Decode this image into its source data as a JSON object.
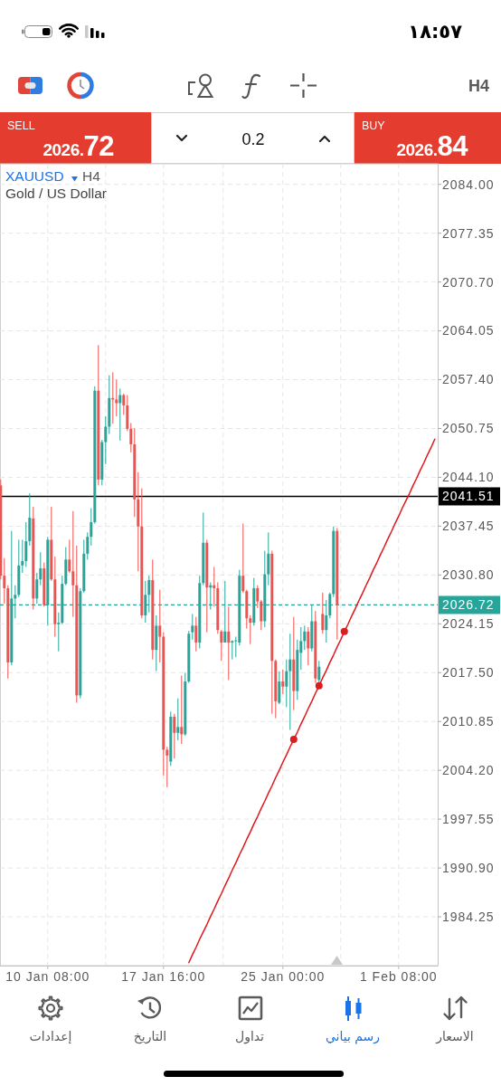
{
  "chart_data": {
    "type": "candlestick",
    "title": "XAUUSD",
    "subtitle": "Gold / US Dollar",
    "annotations": [
      "١٨:٥٧",
      "H4",
      "SELL",
      "2026.72",
      "0.2",
      "BUY",
      "2026.84",
      "H4",
      "إعدادات",
      "التاريخ",
      "تداول",
      "رسم بياني",
      "الاسعار"
    ],
    "categories": [
      null,
      null,
      null,
      null,
      null,
      null,
      null,
      null,
      null,
      null,
      null,
      null,
      null,
      "10 Jan 08:00",
      null,
      null,
      null,
      null,
      null,
      null,
      null,
      null,
      null,
      null,
      null,
      null,
      null,
      null,
      null,
      null,
      null,
      null,
      null,
      null,
      null,
      null,
      null,
      null,
      null,
      null,
      null,
      null,
      null,
      null,
      null,
      "17 Jan 16:00",
      null,
      null,
      null,
      null,
      null,
      null,
      null,
      null,
      null,
      null,
      null,
      null,
      null,
      null,
      null,
      null,
      null,
      null,
      null,
      null,
      null,
      null,
      null,
      null,
      null,
      null,
      null,
      null,
      null,
      null,
      null,
      null,
      "25 Jan 00:00",
      null,
      null,
      null,
      null,
      null,
      null,
      null,
      null,
      null,
      null,
      null,
      null,
      null,
      null,
      null,
      null,
      null,
      null,
      null,
      null,
      null,
      null,
      null,
      null,
      null,
      null,
      null,
      null,
      null,
      null,
      null,
      "1 Feb 08:00",
      null,
      null,
      null,
      null,
      null,
      null,
      null,
      null,
      null,
      null
    ],
    "ohlc": [
      [
        2043.0,
        2043.8,
        2030.2,
        2030.7
      ],
      [
        2030.7,
        2033.1,
        2026.9,
        2029.0
      ],
      [
        2029.0,
        2029.4,
        2016.7,
        2018.9
      ],
      [
        2018.9,
        2036.8,
        2018.5,
        2027.6
      ],
      [
        2027.6,
        2029.4,
        2024.9,
        2028.1
      ],
      [
        2028.1,
        2035.6,
        2027.8,
        2032.1
      ],
      [
        2032.1,
        2035.6,
        2031.1,
        2032.7
      ],
      [
        2032.7,
        2038.0,
        2031.9,
        2035.4
      ],
      [
        2035.4,
        2041.9,
        2034.8,
        2038.6
      ],
      [
        2038.5,
        2040.1,
        2026.1,
        2027.6
      ],
      [
        2027.6,
        2031.1,
        2026.9,
        2030.2
      ],
      [
        2030.2,
        2033.9,
        2029.4,
        2031.7
      ],
      [
        2031.7,
        2032.5,
        2026.5,
        2026.7
      ],
      [
        2026.7,
        2036.0,
        2023.9,
        2035.6
      ],
      [
        2035.6,
        2040.1,
        2030.0,
        2030.2
      ],
      [
        2030.2,
        2033.3,
        2022.4,
        2024.1
      ],
      [
        2024.1,
        2025.7,
        2020.4,
        2024.3
      ],
      [
        2024.3,
        2030.7,
        2024.1,
        2029.6
      ],
      [
        2029.6,
        2034.6,
        2029.4,
        2032.9
      ],
      [
        2032.9,
        2035.6,
        2031.1,
        2031.3
      ],
      [
        2031.3,
        2039.5,
        2025.1,
        2029.4
      ],
      [
        2029.4,
        2034.8,
        2013.4,
        2014.4
      ],
      [
        2014.4,
        2029.0,
        2014.0,
        2028.6
      ],
      [
        2028.6,
        2035.6,
        2028.4,
        2033.7
      ],
      [
        2033.7,
        2036.6,
        2032.9,
        2036.0
      ],
      [
        2036.0,
        2039.9,
        2034.8,
        2038.0
      ],
      [
        2038.0,
        2056.5,
        2037.8,
        2055.9
      ],
      [
        2055.9,
        2062.1,
        2043.0,
        2043.8
      ],
      [
        2043.8,
        2049.2,
        2043.0,
        2048.9
      ],
      [
        2048.9,
        2052.4,
        2045.9,
        2051.0
      ],
      [
        2051.0,
        2058.0,
        2050.0,
        2054.9
      ],
      [
        2054.9,
        2058.4,
        2051.4,
        2054.7
      ],
      [
        2054.7,
        2057.4,
        2052.4,
        2054.2
      ],
      [
        2054.2,
        2056.2,
        2049.1,
        2055.3
      ],
      [
        2055.3,
        2055.5,
        2052.6,
        2053.9
      ],
      [
        2053.9,
        2055.3,
        2050.4,
        2050.7
      ],
      [
        2050.7,
        2051.5,
        2047.5,
        2048.6
      ],
      [
        2048.6,
        2050.8,
        2038.7,
        2041.1
      ],
      [
        2041.1,
        2044.8,
        2031.3,
        2037.4
      ],
      [
        2037.4,
        2042.6,
        2024.9,
        2025.3
      ],
      [
        2025.3,
        2030.0,
        2024.3,
        2028.1
      ],
      [
        2028.1,
        2030.7,
        2025.7,
        2030.1
      ],
      [
        2030.1,
        2032.9,
        2019.3,
        2020.6
      ],
      [
        2020.6,
        2025.3,
        2017.7,
        2023.9
      ],
      [
        2023.9,
        2028.8,
        2018.9,
        2022.4
      ],
      [
        2022.4,
        2023.0,
        2003.5,
        2007.0
      ],
      [
        2007.0,
        2007.4,
        2001.9,
        2006.2
      ],
      [
        2005.4,
        2012.2,
        2004.8,
        2011.5
      ],
      [
        2011.5,
        2011.9,
        2005.8,
        2009.3
      ],
      [
        2009.3,
        2014.0,
        2008.3,
        2010.1
      ],
      [
        2010.1,
        2017.1,
        2007.8,
        2009.1
      ],
      [
        2009.1,
        2017.5,
        2008.9,
        2016.3
      ],
      [
        2016.3,
        2023.2,
        2016.1,
        2022.8
      ],
      [
        2023.0,
        2025.5,
        2022.0,
        2023.9
      ],
      [
        2023.9,
        2025.1,
        2020.4,
        2021.6
      ],
      [
        2021.6,
        2030.7,
        2020.8,
        2029.7
      ],
      [
        2029.7,
        2039.3,
        2029.4,
        2035.2
      ],
      [
        2035.2,
        2035.6,
        2023.0,
        2029.1
      ],
      [
        2029.1,
        2029.8,
        2026.1,
        2029.4
      ],
      [
        2029.4,
        2031.9,
        2026.5,
        2029.0
      ],
      [
        2029.0,
        2029.8,
        2022.8,
        2023.3
      ],
      [
        2023.1,
        2023.3,
        2019.1,
        2021.6
      ],
      [
        2021.6,
        2030.0,
        2021.6,
        2023.1
      ],
      [
        2023.1,
        2026.5,
        2016.5,
        2021.6
      ],
      [
        2021.6,
        2021.9,
        2019.3,
        2021.8
      ],
      [
        2021.8,
        2022.4,
        2019.6,
        2021.9
      ],
      [
        2021.6,
        2031.5,
        2021.2,
        2030.7
      ],
      [
        2030.7,
        2037.8,
        2028.4,
        2028.6
      ],
      [
        2028.6,
        2028.8,
        2023.5,
        2024.9
      ],
      [
        2024.9,
        2025.3,
        2021.4,
        2024.3
      ],
      [
        2024.3,
        2030.4,
        2023.9,
        2029.0
      ],
      [
        2029.0,
        2029.4,
        2026.3,
        2027.2
      ],
      [
        2027.2,
        2027.4,
        2023.3,
        2024.5
      ],
      [
        2024.5,
        2034.1,
        2023.7,
        2030.9
      ],
      [
        2030.9,
        2036.6,
        2029.4,
        2033.7
      ],
      [
        2033.7,
        2034.1,
        2011.9,
        2019.1
      ],
      [
        2019.1,
        2019.3,
        2011.3,
        2013.6
      ],
      [
        2013.4,
        2017.7,
        2013.2,
        2016.3
      ],
      [
        2016.3,
        2017.9,
        2014.6,
        2015.6
      ],
      [
        2015.6,
        2019.3,
        2012.8,
        2017.7
      ],
      [
        2017.7,
        2022.8,
        2009.7,
        2019.3
      ],
      [
        2019.3,
        2025.1,
        2012.4,
        2015.0
      ],
      [
        2015.0,
        2022.0,
        2013.8,
        2020.6
      ],
      [
        2020.2,
        2023.7,
        2017.9,
        2021.8
      ],
      [
        2021.8,
        2023.9,
        2020.6,
        2023.1
      ],
      [
        2023.1,
        2023.7,
        2018.5,
        2020.8
      ],
      [
        2020.8,
        2026.7,
        2020.4,
        2024.5
      ],
      [
        2024.5,
        2025.9,
        2016.1,
        2016.7
      ],
      [
        2016.5,
        2019.1,
        2016.1,
        2018.3
      ],
      [
        2025.5,
        2028.4,
        2022.8,
        2023.3
      ],
      [
        2023.3,
        2027.4,
        2021.6,
        2025.3
      ],
      [
        2025.3,
        2028.4,
        2024.9,
        2028.2
      ],
      [
        2028.2,
        2037.4,
        2027.8,
        2036.8
      ],
      [
        2036.8,
        2037.2,
        2022.0,
        2026.72
      ],
      null,
      null,
      null,
      null,
      null,
      null,
      null,
      null,
      null,
      null,
      null,
      null,
      null,
      null,
      null,
      null,
      null,
      null,
      null,
      null,
      null,
      null,
      null,
      null,
      null,
      null,
      null
    ],
    "colors": [
      "#ef5350",
      "#ef5350",
      "#ef5350",
      "#26a69a",
      "#26a69a",
      "#26a69a",
      "#26a69a",
      "#26a69a",
      "#26a69a",
      "#ef5350",
      "#26a69a",
      "#26a69a",
      "#ef5350",
      "#26a69a",
      "#ef5350",
      "#ef5350",
      "#26a69a",
      "#26a69a",
      "#26a69a",
      "#ef5350",
      "#ef5350",
      "#ef5350",
      "#26a69a",
      "#26a69a",
      "#26a69a",
      "#26a69a",
      "#26a69a",
      "#ef5350",
      "#26a69a",
      "#26a69a",
      "#26a69a",
      "#ef5350",
      "#ef5350",
      "#26a69a",
      "#ef5350",
      "#ef5350",
      "#ef5350",
      "#ef5350",
      "#ef5350",
      "#ef5350",
      "#26a69a",
      "#26a69a",
      "#ef5350",
      "#26a69a",
      "#ef5350",
      "#ef5350",
      "#ef5350",
      "#26a69a",
      "#ef5350",
      "#26a69a",
      "#ef5350",
      "#26a69a",
      "#26a69a",
      "#26a69a",
      "#ef5350",
      "#26a69a",
      "#26a69a",
      "#ef5350",
      "#26a69a",
      "#ef5350",
      "#ef5350",
      "#ef5350",
      "#26a69a",
      "#ef5350",
      "#26a69a",
      "#26a69a",
      "#26a69a",
      "#ef5350",
      "#ef5350",
      "#ef5350",
      "#26a69a",
      "#ef5350",
      "#ef5350",
      "#26a69a",
      "#26a69a",
      "#ef5350",
      "#ef5350",
      "#26a69a",
      "#ef5350",
      "#26a69a",
      "#26a69a",
      "#ef5350",
      "#26a69a",
      "#26a69a",
      "#26a69a",
      "#ef5350",
      "#26a69a",
      "#ef5350",
      "#26a69a",
      "#ef5350",
      "#26a69a",
      "#26a69a",
      "#26a69a",
      "#ef5350",
      null,
      null,
      null,
      null,
      null,
      null,
      null,
      null,
      null,
      null,
      null,
      null,
      null,
      null,
      null,
      null,
      null,
      null,
      null,
      null,
      null,
      null,
      null,
      null,
      null,
      null,
      null
    ],
    "series": [
      {
        "type": "line",
        "color": "#e3161b",
        "values": [
          null,
          null,
          null,
          null,
          null,
          null,
          null,
          null,
          null,
          null,
          null,
          null,
          null,
          null,
          null,
          null,
          null,
          null,
          null,
          null,
          null,
          null,
          null,
          null,
          null,
          null,
          null,
          null,
          null,
          null,
          null,
          null,
          null,
          null,
          null,
          null,
          null,
          null,
          null,
          null,
          null,
          null,
          null,
          null,
          null,
          null,
          null,
          null,
          null,
          null,
          null,
          null,
          1978.0,
          1979.1,
          1980.1,
          1981.2,
          1982.2,
          1983.2,
          1984.3,
          1985.3,
          1986.4,
          1987.4,
          1988.5,
          1989.5,
          1990.6,
          1991.6,
          1992.7,
          1993.7,
          1994.8,
          1995.8,
          1996.9,
          1997.9,
          1999.0,
          2000.0,
          2001.1,
          2002.1,
          2003.2,
          2004.2,
          2005.3,
          2006.3,
          2007.4,
          2008.4,
          2009.4,
          2010.5,
          2011.5,
          2012.6,
          2013.6,
          2014.7,
          2015.7,
          2016.8,
          2017.8,
          2018.9,
          2019.9,
          2021.0,
          2022.0,
          2023.1,
          2024.1,
          2025.2,
          2026.2,
          2027.3,
          2028.3,
          2029.4,
          2030.4,
          2031.5,
          2032.5,
          2033.6,
          2034.6,
          2035.7,
          2036.7,
          2037.8,
          2038.8,
          2039.9,
          2040.9,
          2041.9,
          2043.0,
          2044.0,
          2045.1,
          2046.1,
          2047.2,
          2048.2,
          2049.3
        ]
      },
      {
        "type": "scatter",
        "color": "#d81e1e",
        "marker": "circle",
        "values": [
          null,
          null,
          null,
          null,
          null,
          null,
          null,
          null,
          null,
          null,
          null,
          null,
          null,
          null,
          null,
          null,
          null,
          null,
          null,
          null,
          null,
          null,
          null,
          null,
          null,
          null,
          null,
          null,
          null,
          null,
          null,
          null,
          null,
          null,
          null,
          null,
          null,
          null,
          null,
          null,
          null,
          null,
          null,
          null,
          null,
          null,
          null,
          null,
          null,
          null,
          null,
          null,
          null,
          null,
          null,
          null,
          null,
          null,
          null,
          null,
          null,
          null,
          null,
          null,
          null,
          null,
          null,
          null,
          null,
          null,
          null,
          null,
          null,
          null,
          null,
          null,
          null,
          null,
          null,
          null,
          null,
          2008.4,
          null,
          null,
          null,
          null,
          null,
          null,
          2015.7,
          null,
          null,
          null,
          null,
          null,
          null,
          2023.1,
          null,
          null,
          null,
          null,
          null,
          null,
          null,
          null,
          null,
          null,
          null,
          null,
          null,
          null,
          null,
          null,
          null,
          null,
          null,
          null,
          null,
          null,
          null,
          null,
          null
        ]
      }
    ],
    "ylim": [
      1977.6,
      2086.8
    ],
    "yticks": [
      {
        "value": 2084,
        "label": "2084.00"
      },
      {
        "value": 2077.35,
        "label": "2077.35"
      },
      {
        "value": 2070.7,
        "label": "2070.70"
      },
      {
        "value": 2064.05,
        "label": "2064.05"
      },
      {
        "value": 2057.4,
        "label": "2057.40"
      },
      {
        "value": 2050.75,
        "label": "2050.75"
      },
      {
        "value": 2044.1,
        "label": "2044.10"
      },
      {
        "value": 2037.45,
        "label": "2037.45"
      },
      {
        "value": 2030.8,
        "label": "2030.80"
      },
      {
        "value": 2024.15,
        "label": "2024.15"
      },
      {
        "value": 2017.5,
        "label": "2017.50"
      },
      {
        "value": 2010.85,
        "label": "2010.85"
      },
      {
        "value": 2004.2,
        "label": "2004.20"
      },
      {
        "value": 1997.55,
        "label": "1997.55"
      },
      {
        "value": 1990.9,
        "label": "1990.90"
      },
      {
        "value": 1984.25,
        "label": "1984.25"
      }
    ],
    "ref_lines": [
      {
        "axis": "y",
        "value": 2041.51,
        "label": "2041.51",
        "color": "#000000",
        "line_style": "solid"
      },
      {
        "axis": "y",
        "value": 2026.72,
        "label": "2026.72",
        "color": "#26a69a",
        "line_style": "dashed"
      }
    ],
    "grid": true
  }
}
